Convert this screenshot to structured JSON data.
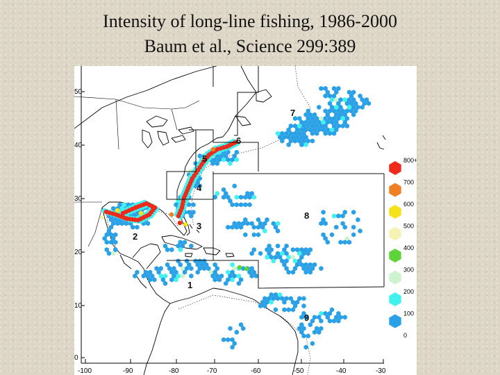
{
  "header": {
    "title": "Intensity of long-line fishing, 1986-2000",
    "subtitle": "Baum et al., Science 299:389"
  },
  "map": {
    "lon_ticks": [
      "-100",
      "-90",
      "-80",
      "-70",
      "-60",
      "-50",
      "-40",
      "-30"
    ],
    "lat_ticks": [
      "50",
      "40",
      "30",
      "20",
      "10",
      "0"
    ],
    "region_labels": [
      "1",
      "2",
      "3",
      "4",
      "5",
      "6",
      "7",
      "8",
      "9"
    ]
  },
  "legend": {
    "labels": [
      "800+",
      "700",
      "600",
      "500",
      "400",
      "300",
      "200",
      "100",
      "0"
    ],
    "colors": [
      "#ee2a1c",
      "#f07e22",
      "#f5e11c",
      "#f7f3b6",
      "#5fd33a",
      "#cdf3cf",
      "#3ff2ee",
      "#2aa0e6"
    ]
  }
}
